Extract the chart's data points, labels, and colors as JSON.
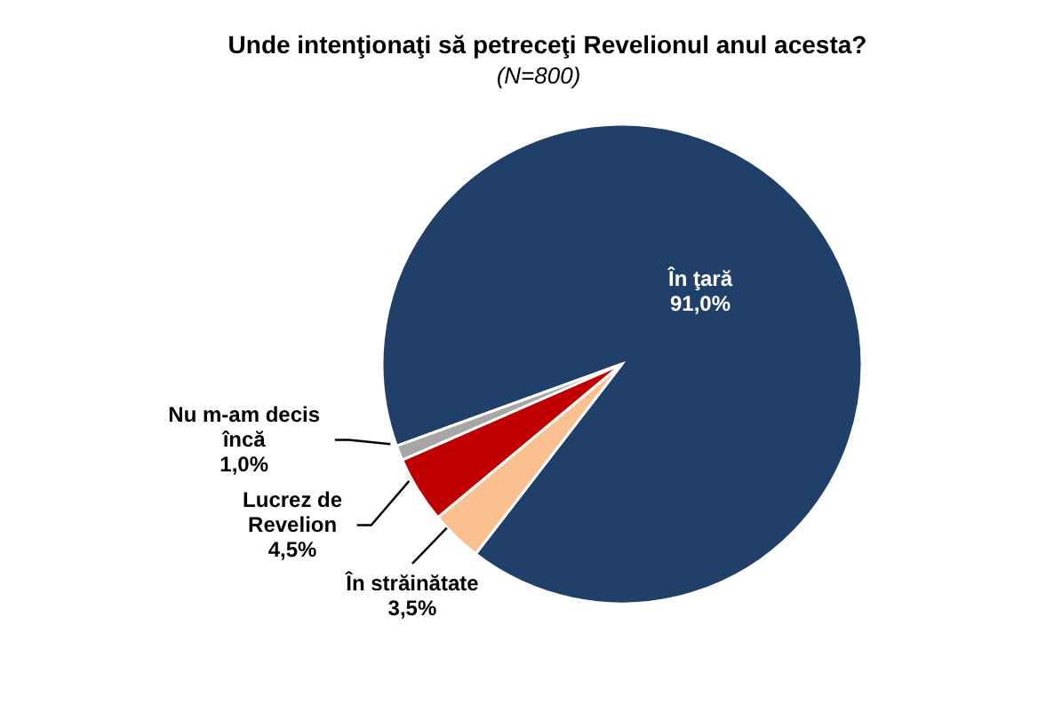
{
  "chart_data": {
    "type": "pie",
    "title": "Unde intenţionaţi să petreceţi Revelionul anul acesta?",
    "subtitle": "(N=800)",
    "categories": [
      "În ţară",
      "În străinătate",
      "Lucrez de Revelion",
      "Nu m-am decis încă"
    ],
    "values": [
      91.0,
      3.5,
      4.5,
      1.0
    ],
    "colors": [
      "#203f69",
      "#fac090",
      "#c00000",
      "#a6a6a6"
    ],
    "value_labels": [
      "91,0%",
      "3,5%",
      "4,5%",
      "1,0%"
    ]
  }
}
